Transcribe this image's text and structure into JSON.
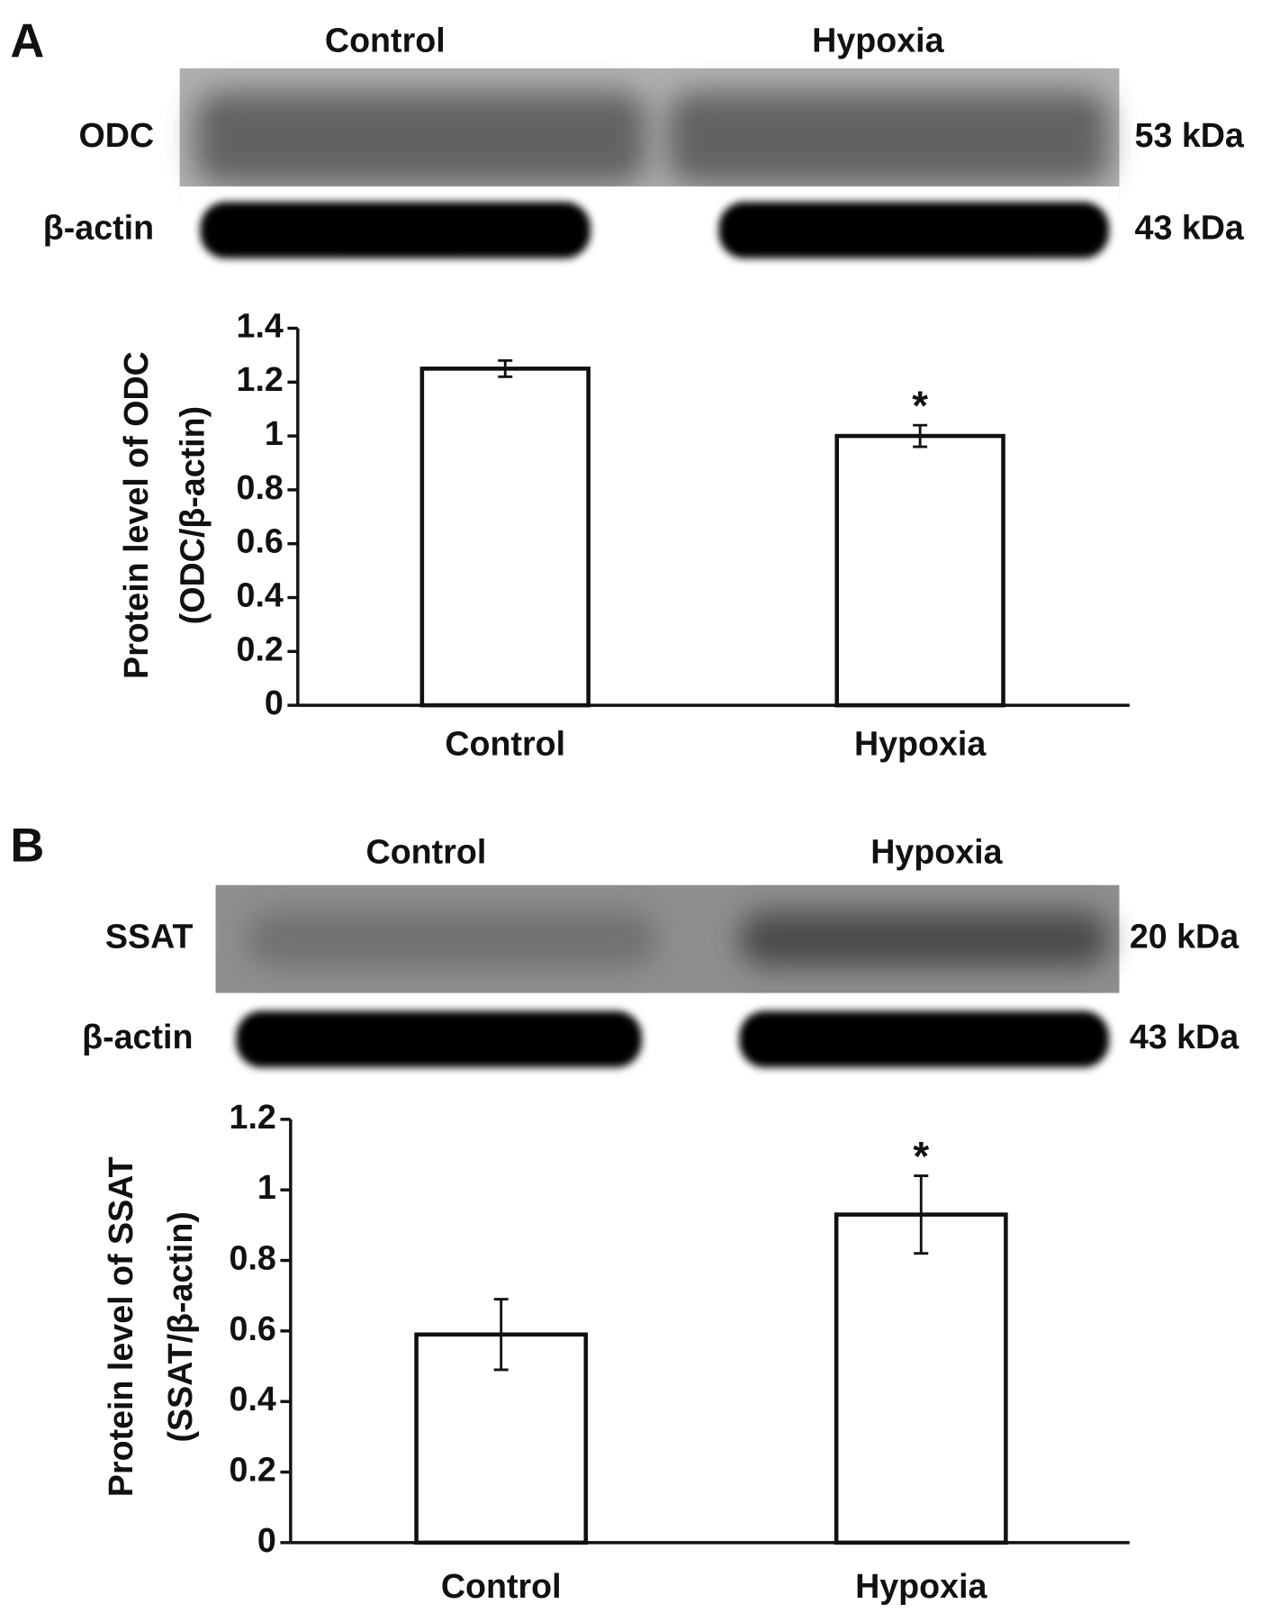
{
  "chart_data": [
    {
      "type": "bar",
      "panel": "A",
      "blot": {
        "lanes": [
          "Control",
          "Hypoxia"
        ],
        "rows": [
          {
            "name": "ODC",
            "size": "53 kDa"
          },
          {
            "name": "β-actin",
            "size": "43 kDa"
          }
        ]
      },
      "ylabel": [
        "Protein level of ODC",
        "(ODC/β-actin)"
      ],
      "categories": [
        "Control",
        "Hypoxia"
      ],
      "values": [
        1.25,
        1.0
      ],
      "errors": [
        0.03,
        0.04
      ],
      "annotations": [
        null,
        "*"
      ],
      "color": "#ffffff",
      "ylim": [
        0,
        1.4
      ],
      "yticks": [
        0,
        0.2,
        0.4,
        0.6,
        0.8,
        1,
        1.2,
        1.4
      ]
    },
    {
      "type": "bar",
      "panel": "B",
      "blot": {
        "lanes": [
          "Control",
          "Hypoxia"
        ],
        "rows": [
          {
            "name": "SSAT",
            "size": "20 kDa"
          },
          {
            "name": "β-actin",
            "size": "43 kDa"
          }
        ]
      },
      "ylabel": [
        "Protein level of SSAT",
        "(SSAT/β-actin)"
      ],
      "categories": [
        "Control",
        "Hypoxia"
      ],
      "values": [
        0.59,
        0.93
      ],
      "errors": [
        0.1,
        0.11
      ],
      "annotations": [
        null,
        "*"
      ],
      "color": "#ffffff",
      "ylim": [
        0,
        1.2
      ],
      "yticks": [
        0,
        0.2,
        0.4,
        0.6,
        0.8,
        1,
        1.2
      ]
    }
  ]
}
